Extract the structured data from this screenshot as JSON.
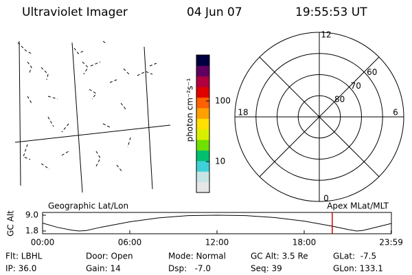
{
  "header": {
    "title": "Ultraviolet Imager",
    "date": "04 Jun 07",
    "time": "19:55:53 UT"
  },
  "colorbar": {
    "label": "photon cm⁻²s⁻¹",
    "scale": "log",
    "ylim": [
      3.1,
      575
    ],
    "yticks": [
      10,
      100
    ],
    "colors": [
      "#e6e6e6",
      "#c8e4e4",
      "#40d0d8",
      "#00c070",
      "#70e000",
      "#d8f000",
      "#ffe000",
      "#ffa000",
      "#ff6000",
      "#e00000",
      "#b00040",
      "#600060",
      "#000040"
    ]
  },
  "polar": {
    "rlim": [
      50,
      90
    ],
    "rings": [
      50,
      60,
      70,
      80
    ],
    "ring_labels": [
      {
        "value": 60,
        "label": "60"
      },
      {
        "value": 70,
        "label": "70"
      },
      {
        "value": 80,
        "label": "80"
      }
    ],
    "hours": [
      0,
      6,
      12,
      18
    ]
  },
  "orbit": {
    "left_title": "Geographic Lat/Lon",
    "right_title": "Apex MLat/MLT",
    "ylabel": "GC Alt",
    "xlim": [
      0,
      24
    ],
    "ylim": [
      0.55,
      10.25
    ],
    "yticks": [
      {
        "value": 9,
        "label": "9.0"
      },
      1.8
    ],
    "xticks": [
      {
        "value": 0,
        "label": "00:00"
      },
      {
        "value": 6,
        "label": "06:00"
      },
      {
        "value": 12,
        "label": "12:00"
      },
      {
        "value": 18,
        "label": "18:00"
      },
      {
        "value": 23.98,
        "label": "23:59"
      }
    ],
    "x": [
      0,
      1,
      2,
      2.5,
      3,
      4,
      6,
      8,
      10,
      12,
      14,
      16,
      18,
      20,
      21,
      21.6,
      22,
      23,
      23.98
    ],
    "values": [
      5.4,
      3.5,
      2.2,
      1.8,
      2.0,
      3.5,
      6.0,
      7.8,
      8.8,
      9.0,
      8.8,
      7.9,
      6.3,
      3.9,
      2.5,
      1.8,
      2.0,
      3.6,
      5.2
    ],
    "marker": 19.93,
    "marker_color": "#d00000"
  },
  "footer": [
    [
      "Flt: LBHL",
      "IP: 36.0"
    ],
    [
      "Door: Open",
      "Gain: 14"
    ],
    [
      "Mode: Normal",
      "Dsp:   -7.0"
    ],
    [
      "GC Alt: 3.5 Re",
      "Seq: 39"
    ],
    [
      "GLat:  -7.5",
      "GLon: 133.1"
    ]
  ]
}
